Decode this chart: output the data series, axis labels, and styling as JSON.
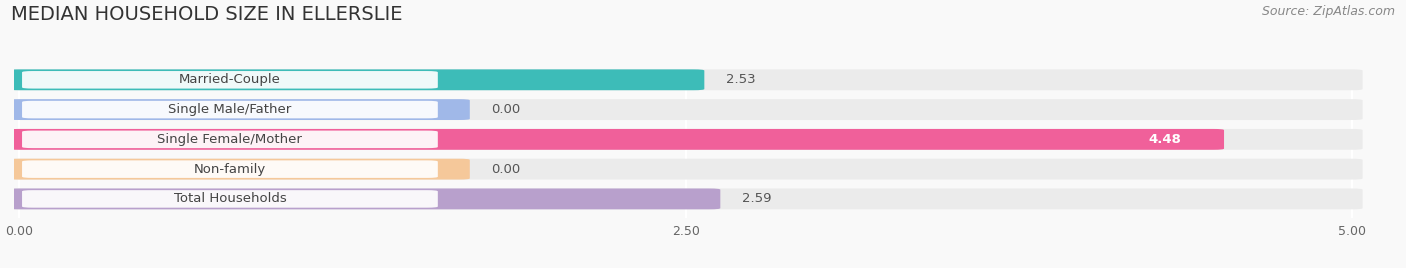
{
  "title": "MEDIAN HOUSEHOLD SIZE IN ELLERSLIE",
  "source": "Source: ZipAtlas.com",
  "categories": [
    "Married-Couple",
    "Single Male/Father",
    "Single Female/Mother",
    "Non-family",
    "Total Households"
  ],
  "values": [
    2.53,
    0.0,
    4.48,
    0.0,
    2.59
  ],
  "bar_colors": [
    "#3dbcb8",
    "#a0b8e8",
    "#f0609a",
    "#f5c89a",
    "#b8a0cc"
  ],
  "bar_bg_color": "#f0f0f0",
  "xlim_max": 5.0,
  "xticks": [
    0.0,
    2.5,
    5.0
  ],
  "xtick_labels": [
    "0.00",
    "2.50",
    "5.00"
  ],
  "title_fontsize": 14,
  "source_fontsize": 9,
  "label_fontsize": 9.5,
  "value_fontsize": 9.5,
  "bar_height": 0.62,
  "background_color": "#f9f9f9",
  "bar_bg_light": "#ebebeb",
  "zero_bar_stub": 1.65
}
